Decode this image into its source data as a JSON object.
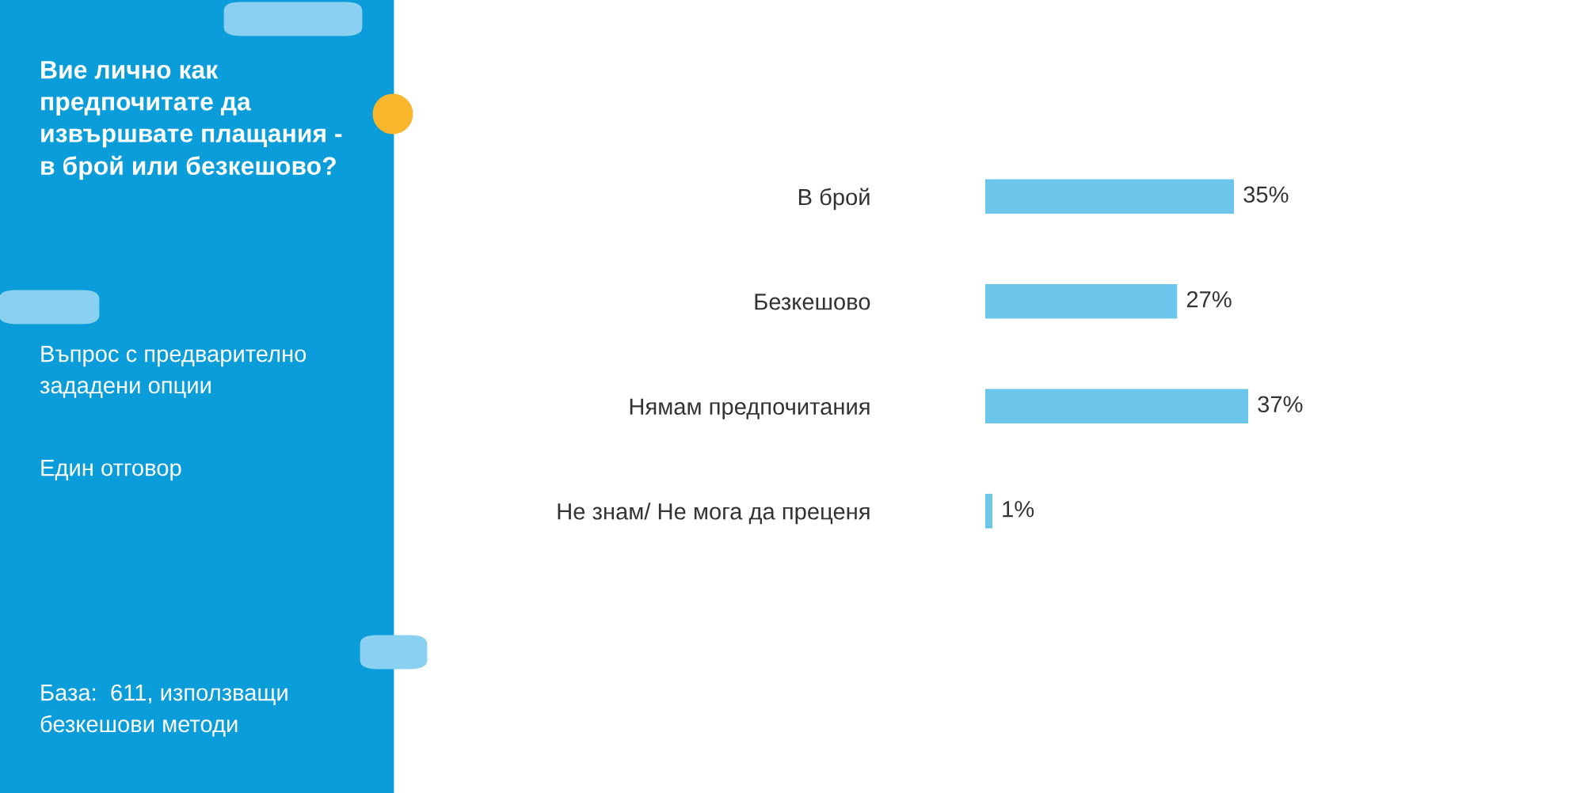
{
  "chart_data": {
    "type": "bar",
    "orientation": "horizontal",
    "title": "Вие лично как\nпредпочитате да\nизвършвате плащания -\nв брой или безкешово?",
    "categories": [
      "В брой",
      "Безкешово",
      "Нямам предпочитания",
      "Не знам/ Не мога да преценя"
    ],
    "values": [
      35,
      27,
      37,
      1
    ],
    "color": "#6cc5ea",
    "value_labels": [
      "35%",
      "27%",
      "37%",
      "1%"
    ],
    "annotations": [
      "Въпрос с предварително\nзададени опции",
      "Един отговор",
      "База:  611, използващи\nбезкешови методи"
    ]
  }
}
